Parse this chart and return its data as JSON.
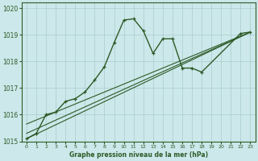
{
  "xlabel": "Graphe pression niveau de la mer (hPa)",
  "ylabel": "",
  "bg_color": "#cce8ea",
  "grid_color": "#aacccc",
  "line_color": "#2d5a27",
  "xlim": [
    -0.5,
    23.5
  ],
  "ylim": [
    1015,
    1020.2
  ],
  "yticks": [
    1015,
    1016,
    1017,
    1018,
    1019,
    1020
  ],
  "xticks": [
    0,
    1,
    2,
    3,
    4,
    5,
    6,
    7,
    8,
    9,
    10,
    11,
    12,
    13,
    14,
    15,
    16,
    17,
    18,
    19,
    20,
    21,
    22,
    23
  ],
  "main_series": {
    "x": [
      0,
      1,
      2,
      3,
      4,
      5,
      6,
      7,
      8,
      9,
      10,
      11,
      12,
      13,
      14,
      15,
      16,
      17,
      18,
      22,
      23
    ],
    "y": [
      1015.1,
      1015.3,
      1016.0,
      1016.1,
      1016.5,
      1016.6,
      1016.85,
      1017.3,
      1017.8,
      1018.7,
      1019.55,
      1019.6,
      1019.15,
      1018.3,
      1018.85,
      1018.85,
      1017.75,
      1017.75,
      1017.6,
      1019.05,
      1019.1
    ]
  },
  "trend_lines": [
    {
      "x": [
        0,
        23
      ],
      "y": [
        1015.1,
        1019.1
      ]
    },
    {
      "x": [
        0,
        23
      ],
      "y": [
        1015.3,
        1019.1
      ]
    },
    {
      "x": [
        0,
        23
      ],
      "y": [
        1015.65,
        1019.1
      ]
    }
  ]
}
